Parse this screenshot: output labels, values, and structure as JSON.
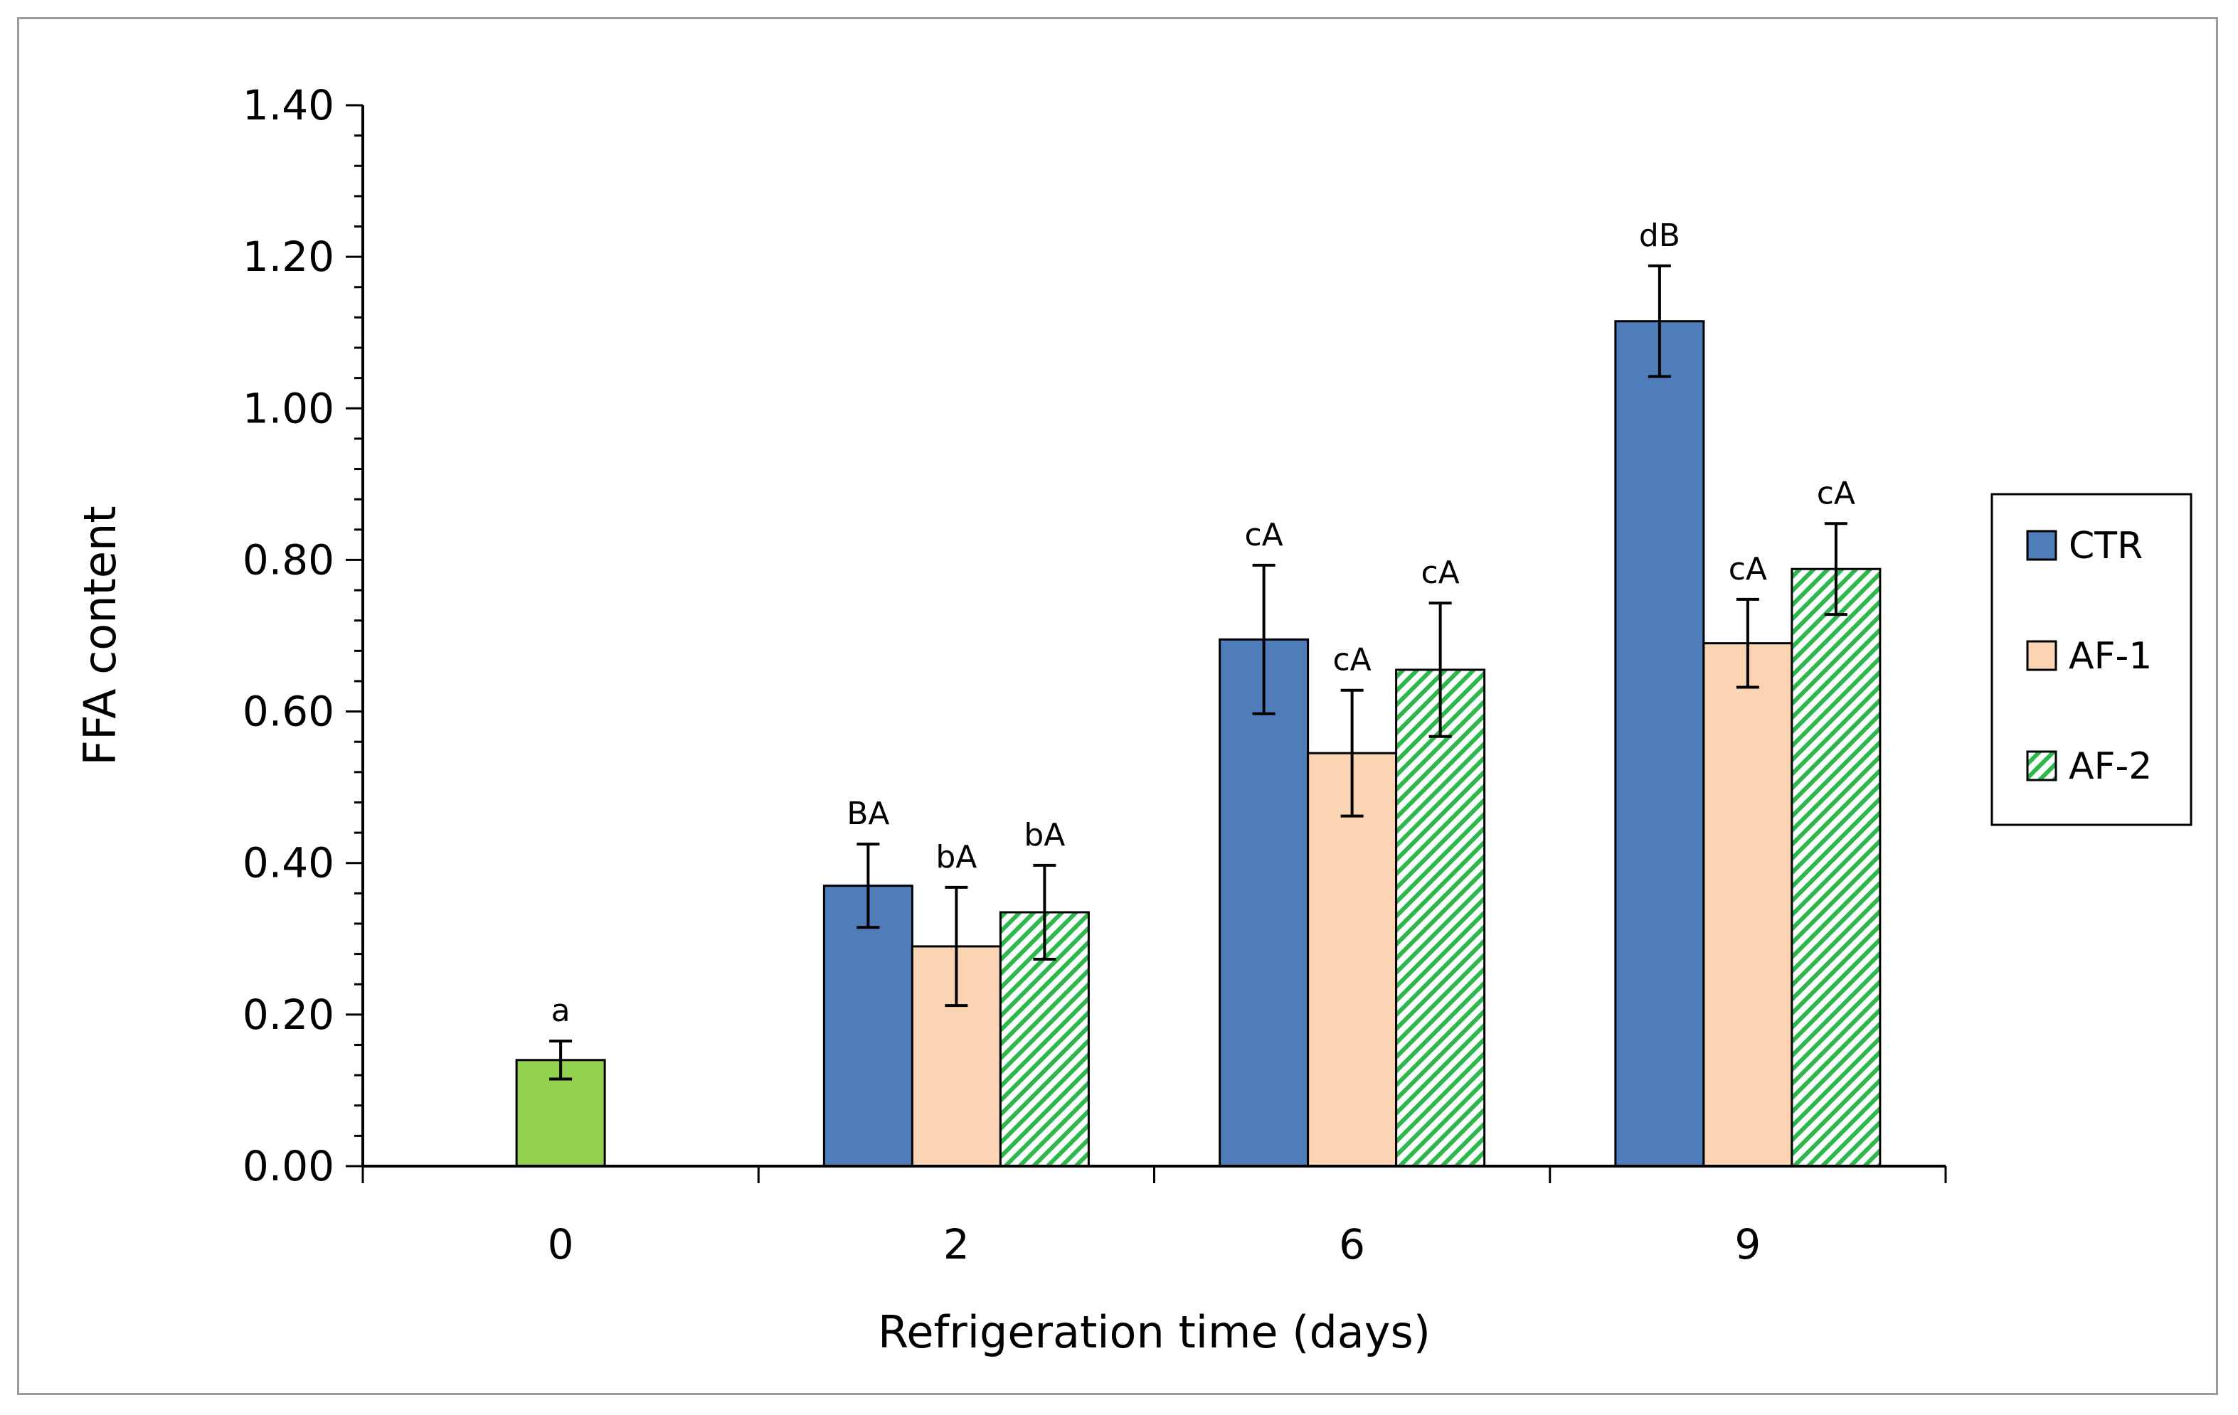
{
  "chart_data": {
    "type": "bar",
    "title": "",
    "xlabel": "Refrigeration time  (days)",
    "ylabel": "FFA content",
    "ylim": [
      0,
      1.4
    ],
    "y_major_ticks": [
      0.0,
      0.2,
      0.4,
      0.6,
      0.8,
      1.0,
      1.2,
      1.4
    ],
    "y_tick_labels": [
      "0.00",
      "0.20",
      "0.40",
      "0.60",
      "0.80",
      "1.00",
      "1.20",
      "1.40"
    ],
    "categories": [
      "0",
      "2",
      "6",
      "9"
    ],
    "legend_position": "right",
    "legend": [
      "CTR",
      "AF-1",
      "AF-2"
    ],
    "colors": {
      "CTR": "#4f7dba",
      "AF-1": "#fad4b3",
      "AF-2": "#2db84d",
      "initial": "#92d050",
      "axis": "#000000",
      "frame": "#9a9a9a"
    },
    "initial": {
      "category": "0",
      "value": 0.14,
      "error": 0.025,
      "label": "a"
    },
    "series": [
      {
        "name": "CTR",
        "pattern": "solid",
        "values": [
          null,
          0.37,
          0.695,
          1.115
        ],
        "errors": [
          null,
          0.055,
          0.098,
          0.073
        ],
        "labels": [
          null,
          "BA",
          "cA",
          "dB"
        ]
      },
      {
        "name": "AF-1",
        "pattern": "solid",
        "values": [
          null,
          0.29,
          0.545,
          0.69
        ],
        "errors": [
          null,
          0.078,
          0.083,
          0.058
        ],
        "labels": [
          null,
          "bA",
          "cA",
          "cA"
        ]
      },
      {
        "name": "AF-2",
        "pattern": "hatched",
        "values": [
          null,
          0.335,
          0.655,
          0.788
        ],
        "errors": [
          null,
          0.062,
          0.088,
          0.06
        ],
        "labels": [
          null,
          "bA",
          "cA",
          "cA"
        ]
      }
    ]
  }
}
